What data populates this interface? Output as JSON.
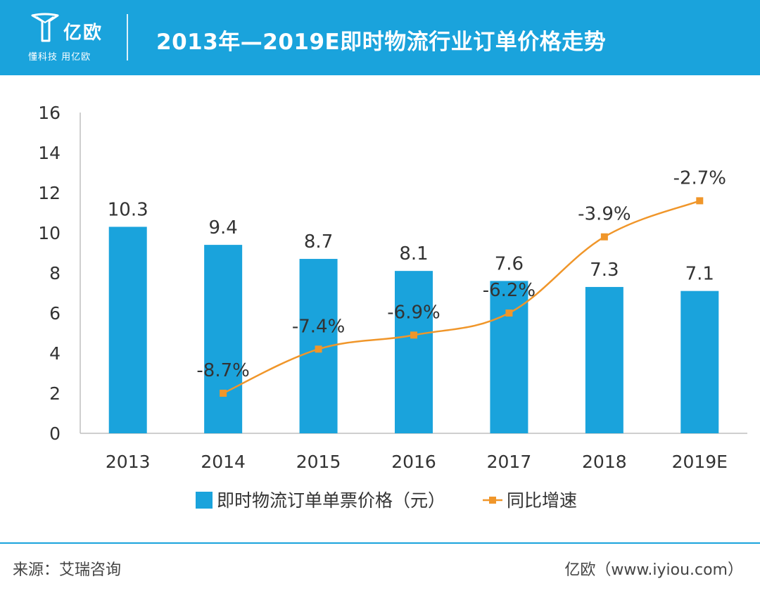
{
  "brand": {
    "name": "亿欧",
    "slogan": "懂科技 用亿欧"
  },
  "header": {
    "title": "2013年—2019E即时物流行业订单价格走势",
    "background": "#1aa3dc"
  },
  "chart_data": {
    "type": "bar+line",
    "categories": [
      "2013",
      "2014",
      "2015",
      "2016",
      "2017",
      "2018",
      "2019E"
    ],
    "ylim": [
      0,
      16
    ],
    "yticks": [
      "0",
      "2",
      "4",
      "6",
      "8",
      "10",
      "12",
      "14",
      "16"
    ],
    "series": [
      {
        "name": "即时物流订单单票价格（元）",
        "type": "bar",
        "color": "#1aa3dc",
        "values": [
          10.3,
          9.4,
          8.7,
          8.1,
          7.6,
          7.3,
          7.1
        ],
        "labels": [
          "10.3",
          "9.4",
          "8.7",
          "8.1",
          "7.6",
          "7.3",
          "7.1"
        ]
      },
      {
        "name": "同比增速",
        "type": "line",
        "color": "#f0962a",
        "values": [
          null,
          -8.7,
          -7.4,
          -6.9,
          -6.2,
          -3.9,
          -2.7
        ],
        "plot_values": [
          null,
          2.0,
          4.2,
          4.9,
          6.0,
          9.8,
          11.6
        ],
        "labels": [
          "",
          "-8.7%",
          "-7.4%",
          "-6.9%",
          "-6.2%",
          "-3.9%",
          "-2.7%"
        ]
      }
    ],
    "legend": "bottom-center"
  },
  "footer": {
    "source": "来源：艾瑞咨询",
    "credit": "亿欧（www.iyiou.com）"
  }
}
